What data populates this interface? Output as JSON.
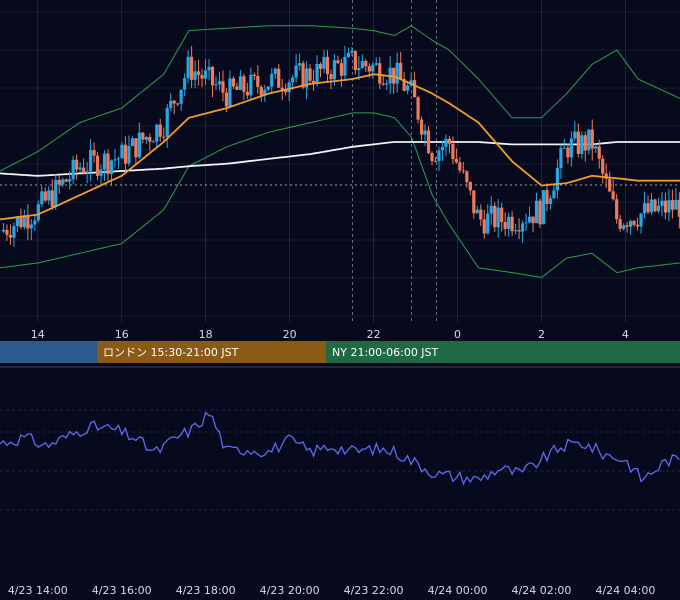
{
  "colors": {
    "background": "#070a1c",
    "grid": "#2a2f4c",
    "bb_band": "#2e9e4e",
    "ma_short": "#f29a2e",
    "ma_long": "#f2f2f2",
    "candle_up": "#2aa6e0",
    "candle_down": "#f07a5a",
    "oscillator": "#5e6af0",
    "session_tokyo": "#2d5a8c",
    "session_london": "#8a5a16",
    "session_ny": "#1f6a44"
  },
  "sessions": [
    {
      "label": "",
      "color": "#2d5a8c"
    },
    {
      "label": "ロンドン 15:30-21:00 JST",
      "color": "#8a5a16"
    },
    {
      "label": "NY 21:00-06:00 JST",
      "color": "#1f6a44"
    }
  ],
  "chart_data": [
    {
      "type": "candlestick",
      "x_tick_labels": [
        "14",
        "16",
        "18",
        "20",
        "22",
        "0",
        "2",
        "4"
      ],
      "x_hours": [
        14,
        16,
        18,
        20,
        22,
        24,
        26,
        28
      ],
      "x_range": [
        13.1,
        29.3
      ],
      "y_range": [
        0,
        100
      ],
      "event_markers_hours": [
        21.5,
        22.9,
        23.5
      ],
      "series": [
        {
          "kind": "candles"
        },
        {
          "kind": "bollinger_band"
        },
        {
          "kind": "moving_average"
        },
        {
          "kind": "moving_average"
        }
      ],
      "anchors": {
        "close_x": [
          13.1,
          14.0,
          15.0,
          16.0,
          17.0,
          17.6,
          18.5,
          19.5,
          20.5,
          21.5,
          22.0,
          22.5,
          22.9,
          23.4,
          23.8,
          24.5,
          25.3,
          26.0,
          26.6,
          27.2,
          27.8,
          28.3,
          29.3
        ],
        "close_y": [
          25,
          34,
          52,
          56,
          70,
          93,
          82,
          87,
          90,
          95,
          93,
          90,
          82,
          58,
          62,
          30,
          30,
          34,
          60,
          62,
          30,
          32,
          36
        ],
        "ma_short_y": [
          30,
          32,
          40,
          48,
          62,
          72,
          76,
          82,
          86,
          88,
          90,
          89,
          86,
          82,
          78,
          70,
          54,
          44,
          45,
          48,
          47,
          46,
          46
        ],
        "ma_long_y": [
          49,
          48,
          49,
          50,
          51,
          52,
          53,
          55,
          57,
          60,
          61,
          62,
          62,
          62,
          62,
          62,
          61,
          61,
          61,
          61,
          62,
          62,
          62
        ],
        "bb_upper_y": [
          50,
          58,
          70,
          76,
          90,
          108,
          109,
          110,
          110,
          109,
          108,
          106,
          110,
          104,
          100,
          88,
          72,
          72,
          82,
          94,
          100,
          88,
          80
        ],
        "bb_lower_y": [
          10,
          12,
          16,
          20,
          34,
          52,
          60,
          66,
          70,
          74,
          74,
          72,
          64,
          40,
          28,
          10,
          8,
          6,
          14,
          16,
          8,
          10,
          12
        ]
      }
    },
    {
      "type": "line",
      "x_tick_labels": [
        "4/23 14:00",
        "4/23 16:00",
        "4/23 18:00",
        "4/23 20:00",
        "4/23 22:00",
        "4/24 00:00",
        "4/24 02:00",
        "4/24 04:00"
      ],
      "x_hours": [
        14,
        16,
        18,
        20,
        22,
        24,
        26,
        28
      ],
      "x_range": [
        13.1,
        29.3
      ],
      "y_range": [
        0,
        100
      ],
      "series": [
        {
          "anchors_x": [
            13.1,
            13.7,
            14.2,
            14.8,
            15.2,
            15.8,
            16.3,
            16.8,
            17.3,
            17.7,
            18.1,
            18.5,
            19.0,
            19.5,
            20.0,
            20.5,
            21.0,
            21.5,
            22.0,
            22.5,
            23.0,
            23.5,
            24.0,
            24.5,
            25.0,
            25.5,
            26.0,
            26.5,
            27.0,
            27.5,
            28.0,
            28.4,
            29.0,
            29.3
          ],
          "anchors_y": [
            62,
            66,
            60,
            68,
            74,
            72,
            66,
            55,
            66,
            72,
            84,
            56,
            58,
            56,
            64,
            56,
            60,
            56,
            58,
            56,
            48,
            40,
            38,
            36,
            44,
            40,
            50,
            60,
            62,
            54,
            50,
            36,
            50,
            50
          ]
        }
      ]
    }
  ]
}
